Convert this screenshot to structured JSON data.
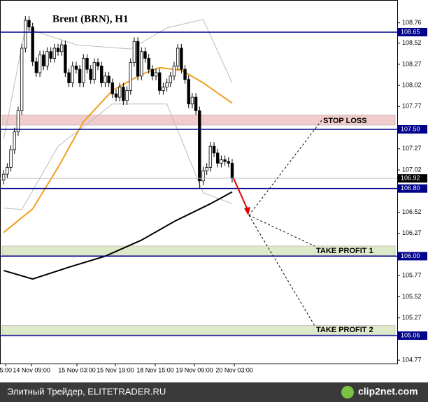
{
  "chart_data": {
    "type": "candlestick",
    "title": "Brent (BRN), H1",
    "x": [
      0,
      1,
      2,
      3,
      4,
      5,
      6,
      7,
      8,
      9,
      10,
      11,
      12,
      13,
      14,
      15,
      16,
      17,
      18,
      19,
      20,
      21,
      22,
      23,
      24,
      25,
      26,
      27,
      28,
      29,
      30,
      31,
      32,
      33,
      34,
      35,
      36,
      37,
      38,
      39,
      40,
      41,
      42,
      43,
      44,
      45,
      46,
      47,
      48,
      49,
      50,
      51,
      52,
      53,
      54,
      55,
      56,
      57,
      58,
      59,
      60,
      61,
      62,
      63
    ],
    "open": [
      106.9,
      106.97,
      107.05,
      107.26,
      107.47,
      107.72,
      108.46,
      108.79,
      108.71,
      108.3,
      108.17,
      108.38,
      108.25,
      108.42,
      108.34,
      108.46,
      108.42,
      108.5,
      108.17,
      108.05,
      108.25,
      108.21,
      108.05,
      108.34,
      108.21,
      108.09,
      108.29,
      108.25,
      108.05,
      108.13,
      108.05,
      107.92,
      107.88,
      108.0,
      107.84,
      107.96,
      108.29,
      108.54,
      108.13,
      108.42,
      108.34,
      108.21,
      108.13,
      108.17,
      107.96,
      108.0,
      108.05,
      108.13,
      108.25,
      108.46,
      108.21,
      108.09,
      107.8,
      107.88,
      107.72,
      106.89,
      107.01,
      107.05,
      107.3,
      107.22,
      107.1,
      107.14,
      107.12,
      107.1
    ],
    "high": [
      107.02,
      107.1,
      107.31,
      107.52,
      107.77,
      108.51,
      108.84,
      108.84,
      108.76,
      108.35,
      108.43,
      108.43,
      108.47,
      108.47,
      108.51,
      108.51,
      108.55,
      108.55,
      108.22,
      108.3,
      108.3,
      108.26,
      108.39,
      108.39,
      108.26,
      108.34,
      108.34,
      108.3,
      108.18,
      108.18,
      108.1,
      107.97,
      108.05,
      108.05,
      108.01,
      108.34,
      108.59,
      108.59,
      108.47,
      108.47,
      108.39,
      108.26,
      108.22,
      108.22,
      108.05,
      108.1,
      108.18,
      108.3,
      108.51,
      108.51,
      108.26,
      108.14,
      107.93,
      107.93,
      107.77,
      107.06,
      107.1,
      107.35,
      107.35,
      107.27,
      107.19,
      107.19,
      107.17,
      107.15
    ],
    "low": [
      106.85,
      106.92,
      107.0,
      107.21,
      107.42,
      107.67,
      108.41,
      108.66,
      108.25,
      108.12,
      108.12,
      108.2,
      108.2,
      108.29,
      108.29,
      108.37,
      108.37,
      108.12,
      108.0,
      108.0,
      108.16,
      108.0,
      108.0,
      108.16,
      108.04,
      108.04,
      108.2,
      108.0,
      108.0,
      108.0,
      107.87,
      107.83,
      107.83,
      107.79,
      107.79,
      107.91,
      108.24,
      108.08,
      108.08,
      108.29,
      108.16,
      108.08,
      108.08,
      107.91,
      107.91,
      107.95,
      108.0,
      108.08,
      108.2,
      108.16,
      108.04,
      107.75,
      107.75,
      107.67,
      106.8,
      106.84,
      106.96,
      107.0,
      107.17,
      107.05,
      107.05,
      107.07,
      107.05,
      106.87
    ],
    "close": [
      106.97,
      107.05,
      107.26,
      107.47,
      107.72,
      108.46,
      108.79,
      108.71,
      108.3,
      108.17,
      108.38,
      108.25,
      108.42,
      108.34,
      108.46,
      108.42,
      108.5,
      108.17,
      108.05,
      108.25,
      108.21,
      108.05,
      108.34,
      108.21,
      108.09,
      108.29,
      108.25,
      108.05,
      108.13,
      108.05,
      107.92,
      107.88,
      108.0,
      107.84,
      107.96,
      108.29,
      108.54,
      108.13,
      108.42,
      108.34,
      108.21,
      108.13,
      108.17,
      107.96,
      108.0,
      108.05,
      108.13,
      108.25,
      108.46,
      108.21,
      108.09,
      107.8,
      107.88,
      107.72,
      106.89,
      107.01,
      107.05,
      107.3,
      107.22,
      107.1,
      107.14,
      107.12,
      107.1,
      106.92
    ],
    "up_color": "#ffffff",
    "down_color": "#000000",
    "series": [
      {
        "color": "#bbbbbb",
        "x": [
          0,
          6,
          20,
          35,
          45,
          55,
          63
        ],
        "values": [
          107.38,
          108.7,
          108.5,
          108.45,
          108.7,
          108.8,
          108.05
        ]
      },
      {
        "color": "#bbbbbb",
        "x": [
          0,
          5,
          15,
          30,
          45,
          55,
          63
        ],
        "values": [
          106.57,
          106.55,
          107.3,
          107.8,
          107.8,
          106.75,
          106.62
        ]
      },
      {
        "color": "#f0a020",
        "x": [
          0,
          8,
          15,
          22,
          30,
          38,
          43,
          49,
          55,
          63
        ],
        "values": [
          106.28,
          106.56,
          107.05,
          107.59,
          107.96,
          108.15,
          108.23,
          108.2,
          108.05,
          107.81
        ]
      },
      {
        "color": "#000000",
        "x": [
          0,
          8,
          18,
          28,
          38,
          47,
          57,
          63
        ],
        "values": [
          105.83,
          105.73,
          105.87,
          106.0,
          106.19,
          106.41,
          106.62,
          106.76
        ]
      }
    ],
    "xlim": [
      -1,
      108.5
    ],
    "ylim": [
      104.73,
      109.03
    ],
    "xticks": [
      {
        "value": 0.6,
        "label": "5:00"
      },
      {
        "value": 7.7,
        "label": "14 Nov 09:00"
      },
      {
        "value": 20.2,
        "label": "15 Nov 03:00"
      },
      {
        "value": 30.8,
        "label": "15 Nov 19:00"
      },
      {
        "value": 41.8,
        "label": "18 Nov 15:00"
      },
      {
        "value": 52.6,
        "label": "19 Nov 09:00"
      },
      {
        "value": 63.6,
        "label": "20 Nov 03:00"
      }
    ],
    "yticks": [
      108.76,
      108.52,
      108.27,
      108.02,
      107.77,
      107.27,
      107.02,
      106.52,
      106.27,
      105.77,
      105.52,
      105.27,
      104.77
    ],
    "levels": [
      {
        "value": 108.65,
        "label": "108.65"
      },
      {
        "value": 107.5,
        "label": "107.50"
      },
      {
        "value": 106.8,
        "label": "106.80"
      },
      {
        "value": 106.0,
        "label": "106.00"
      },
      {
        "value": 105.06,
        "label": "105.06"
      }
    ],
    "level_color": "#00008b",
    "current_price": 106.92,
    "zones": [
      {
        "from": 107.55,
        "to": 107.67,
        "color": "#f2cccc"
      },
      {
        "from": 106.01,
        "to": 106.12,
        "color": "#dde9c8"
      },
      {
        "from": 105.07,
        "to": 105.18,
        "color": "#dde9c8"
      }
    ],
    "annotations": [
      "STOP LOSS",
      "TAKE PROFIT 1",
      "TAKE PROFIT 2"
    ]
  },
  "footer": {
    "left": "Элитный Трейдер, ELITETRADER.RU",
    "right": "clip2net.com"
  }
}
